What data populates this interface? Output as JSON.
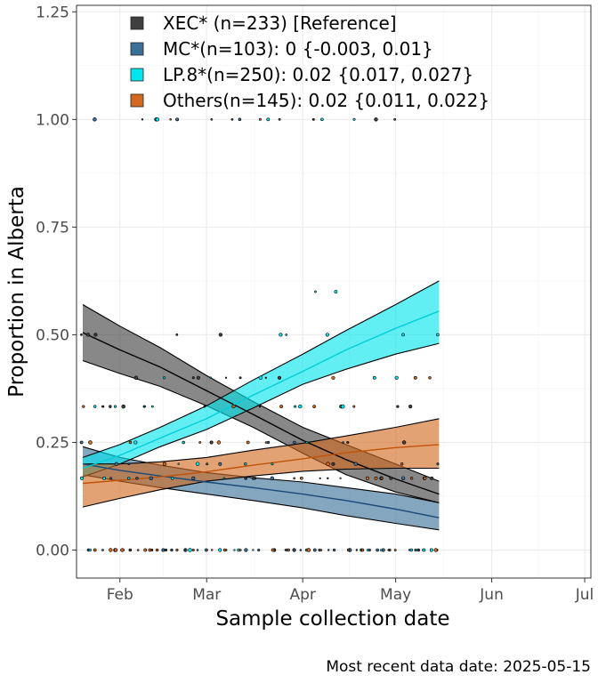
{
  "chart_data": {
    "type": "line",
    "xlabel": "Sample collection date",
    "ylabel": "Proportion in Alberta",
    "caption": "Most recent data date: 2025-05-15",
    "x_tick_labels": [
      "Feb",
      "Mar",
      "Apr",
      "May",
      "Jun",
      "Jul"
    ],
    "y_tick_labels": [
      "0.00",
      "0.25",
      "0.50",
      "0.75",
      "1.00",
      "1.25"
    ],
    "x_tick_values": [
      32,
      60,
      91,
      121,
      152,
      182
    ],
    "y_tick_values": [
      0,
      0.25,
      0.5,
      0.75,
      1.0,
      1.25
    ],
    "xlim": [
      18,
      184
    ],
    "ylim": [
      -0.065,
      1.265
    ],
    "x_unit": "day of year 2025",
    "grid": true,
    "legend_position": "top-left (inside plot)",
    "series": [
      {
        "name": "XEC* (n=233)  [Reference]",
        "color": "#3f3f3f",
        "line_color": "#000000",
        "x": [
          20,
          32,
          45,
          60,
          75,
          91,
          105,
          121,
          135
        ],
        "fit": [
          0.505,
          0.465,
          0.425,
          0.37,
          0.315,
          0.255,
          0.21,
          0.165,
          0.13
        ],
        "lower": [
          0.44,
          0.41,
          0.38,
          0.335,
          0.285,
          0.225,
          0.175,
          0.135,
          0.11
        ],
        "upper": [
          0.57,
          0.52,
          0.47,
          0.405,
          0.345,
          0.285,
          0.245,
          0.2,
          0.16
        ]
      },
      {
        "name": "MC*(n=103): 0 {-0.003, 0.01}",
        "color": "#3a6f98",
        "line_color": "#1a4a7a",
        "x": [
          20,
          32,
          45,
          60,
          75,
          91,
          105,
          121,
          135
        ],
        "fit": [
          0.2,
          0.185,
          0.172,
          0.158,
          0.145,
          0.13,
          0.115,
          0.095,
          0.075
        ],
        "lower": [
          0.175,
          0.16,
          0.145,
          0.13,
          0.115,
          0.098,
          0.08,
          0.062,
          0.047
        ],
        "upper": [
          0.24,
          0.215,
          0.197,
          0.18,
          0.168,
          0.158,
          0.145,
          0.13,
          0.11
        ]
      },
      {
        "name": "LP.8*(n=250): 0.02 {0.017, 0.027}",
        "color": "#00e5ee",
        "line_color": "#00cfd8",
        "x": [
          20,
          32,
          45,
          60,
          75,
          91,
          105,
          121,
          135
        ],
        "fit": [
          0.19,
          0.22,
          0.26,
          0.305,
          0.36,
          0.415,
          0.465,
          0.515,
          0.555
        ],
        "lower": [
          0.17,
          0.2,
          0.24,
          0.28,
          0.33,
          0.385,
          0.42,
          0.455,
          0.48
        ],
        "upper": [
          0.215,
          0.245,
          0.285,
          0.335,
          0.395,
          0.455,
          0.51,
          0.57,
          0.625
        ]
      },
      {
        "name": "Others(n=145): 0.02 {0.011, 0.022}",
        "color": "#d2691e",
        "line_color": "#c0530a",
        "x": [
          20,
          32,
          45,
          60,
          75,
          91,
          105,
          121,
          135
        ],
        "fit": [
          0.155,
          0.162,
          0.17,
          0.182,
          0.197,
          0.212,
          0.226,
          0.238,
          0.245
        ],
        "lower": [
          0.1,
          0.12,
          0.14,
          0.16,
          0.172,
          0.183,
          0.188,
          0.19,
          0.19
        ],
        "upper": [
          0.2,
          0.2,
          0.205,
          0.215,
          0.232,
          0.248,
          0.265,
          0.285,
          0.305
        ]
      }
    ]
  }
}
